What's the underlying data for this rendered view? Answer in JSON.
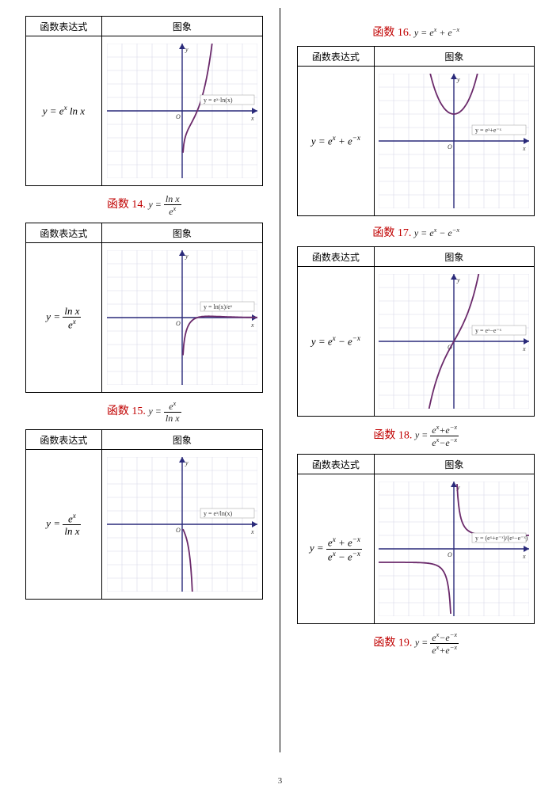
{
  "page_number": "3",
  "headers": {
    "expr": "函数表达式",
    "graph": "图象"
  },
  "chart_style": {
    "width": 190,
    "height": 170,
    "xrange": [
      -5,
      5
    ],
    "yrange": [
      -5,
      5
    ],
    "grid_color": "#d8d8e8",
    "axis_color": "#2a2a7a",
    "curve_color": "#6b2a6b",
    "background": "#ffffff"
  },
  "left": [
    {
      "expr_html": "y = e<sup>x</sup> ln x",
      "graph_label": "y = eˣ·ln(x)",
      "fn": "exlnx",
      "caption_red": "函数 14.",
      "caption_math_html": "y = <span class='frac'><span class='num'>ln x</span><span class='den'>e<sup>x</sup></span></span>"
    },
    {
      "expr_html": "y = <span class='frac'><span class='num'>ln x</span><span class='den'>e<sup>x</sup></span></span>",
      "graph_label": "y = ln(x)/eˣ",
      "fn": "lnx_over_ex",
      "caption_red": "函数 15.",
      "caption_math_html": "y = <span class='frac'><span class='num'>e<sup>x</sup></span><span class='den'>ln x</span></span>"
    },
    {
      "expr_html": "y = <span class='frac'><span class='num'>e<sup>x</sup></span><span class='den'>ln x</span></span>",
      "graph_label": "y = eˣ/ln(x)",
      "fn": "ex_over_lnx",
      "caption_red": "",
      "caption_math_html": ""
    }
  ],
  "right": [
    {
      "pre_caption_red": "函数 16.",
      "pre_caption_math": "y = e<sup>x</sup> + e<sup>−x</sup>",
      "expr_html": "y = e<sup>x</sup> + e<sup>−x</sup>",
      "graph_label": "y = eˣ+e⁻ˣ",
      "fn": "cosh2",
      "caption_red": "函数 17.",
      "caption_math_html": "y = e<sup>x</sup> − e<sup>−x</sup>"
    },
    {
      "expr_html": "y = e<sup>x</sup> − e<sup>−x</sup>",
      "graph_label": "y = eˣ−e⁻ˣ",
      "fn": "sinh2",
      "caption_red": "函数 18.",
      "caption_math_html": "y = <span class='frac'><span class='num'>e<sup>x</sup>+e<sup>−x</sup></span><span class='den'>e<sup>x</sup>−e<sup>−x</sup></span></span>"
    },
    {
      "expr_html": "y = <span class='frac'><span class='num'>e<sup>x</sup> + e<sup>−x</sup></span><span class='den'>e<sup>x</sup> − e<sup>−x</sup></span></span>",
      "graph_label": "y = (eˣ+e⁻ˣ)/(eˣ−e⁻ˣ)",
      "fn": "coth",
      "caption_red": "函数 19.",
      "caption_math_html": "y = <span class='frac'><span class='num'>e<sup>x</sup>−e<sup>−x</sup></span><span class='den'>e<sup>x</sup>+e<sup>−x</sup></span></span>"
    }
  ]
}
